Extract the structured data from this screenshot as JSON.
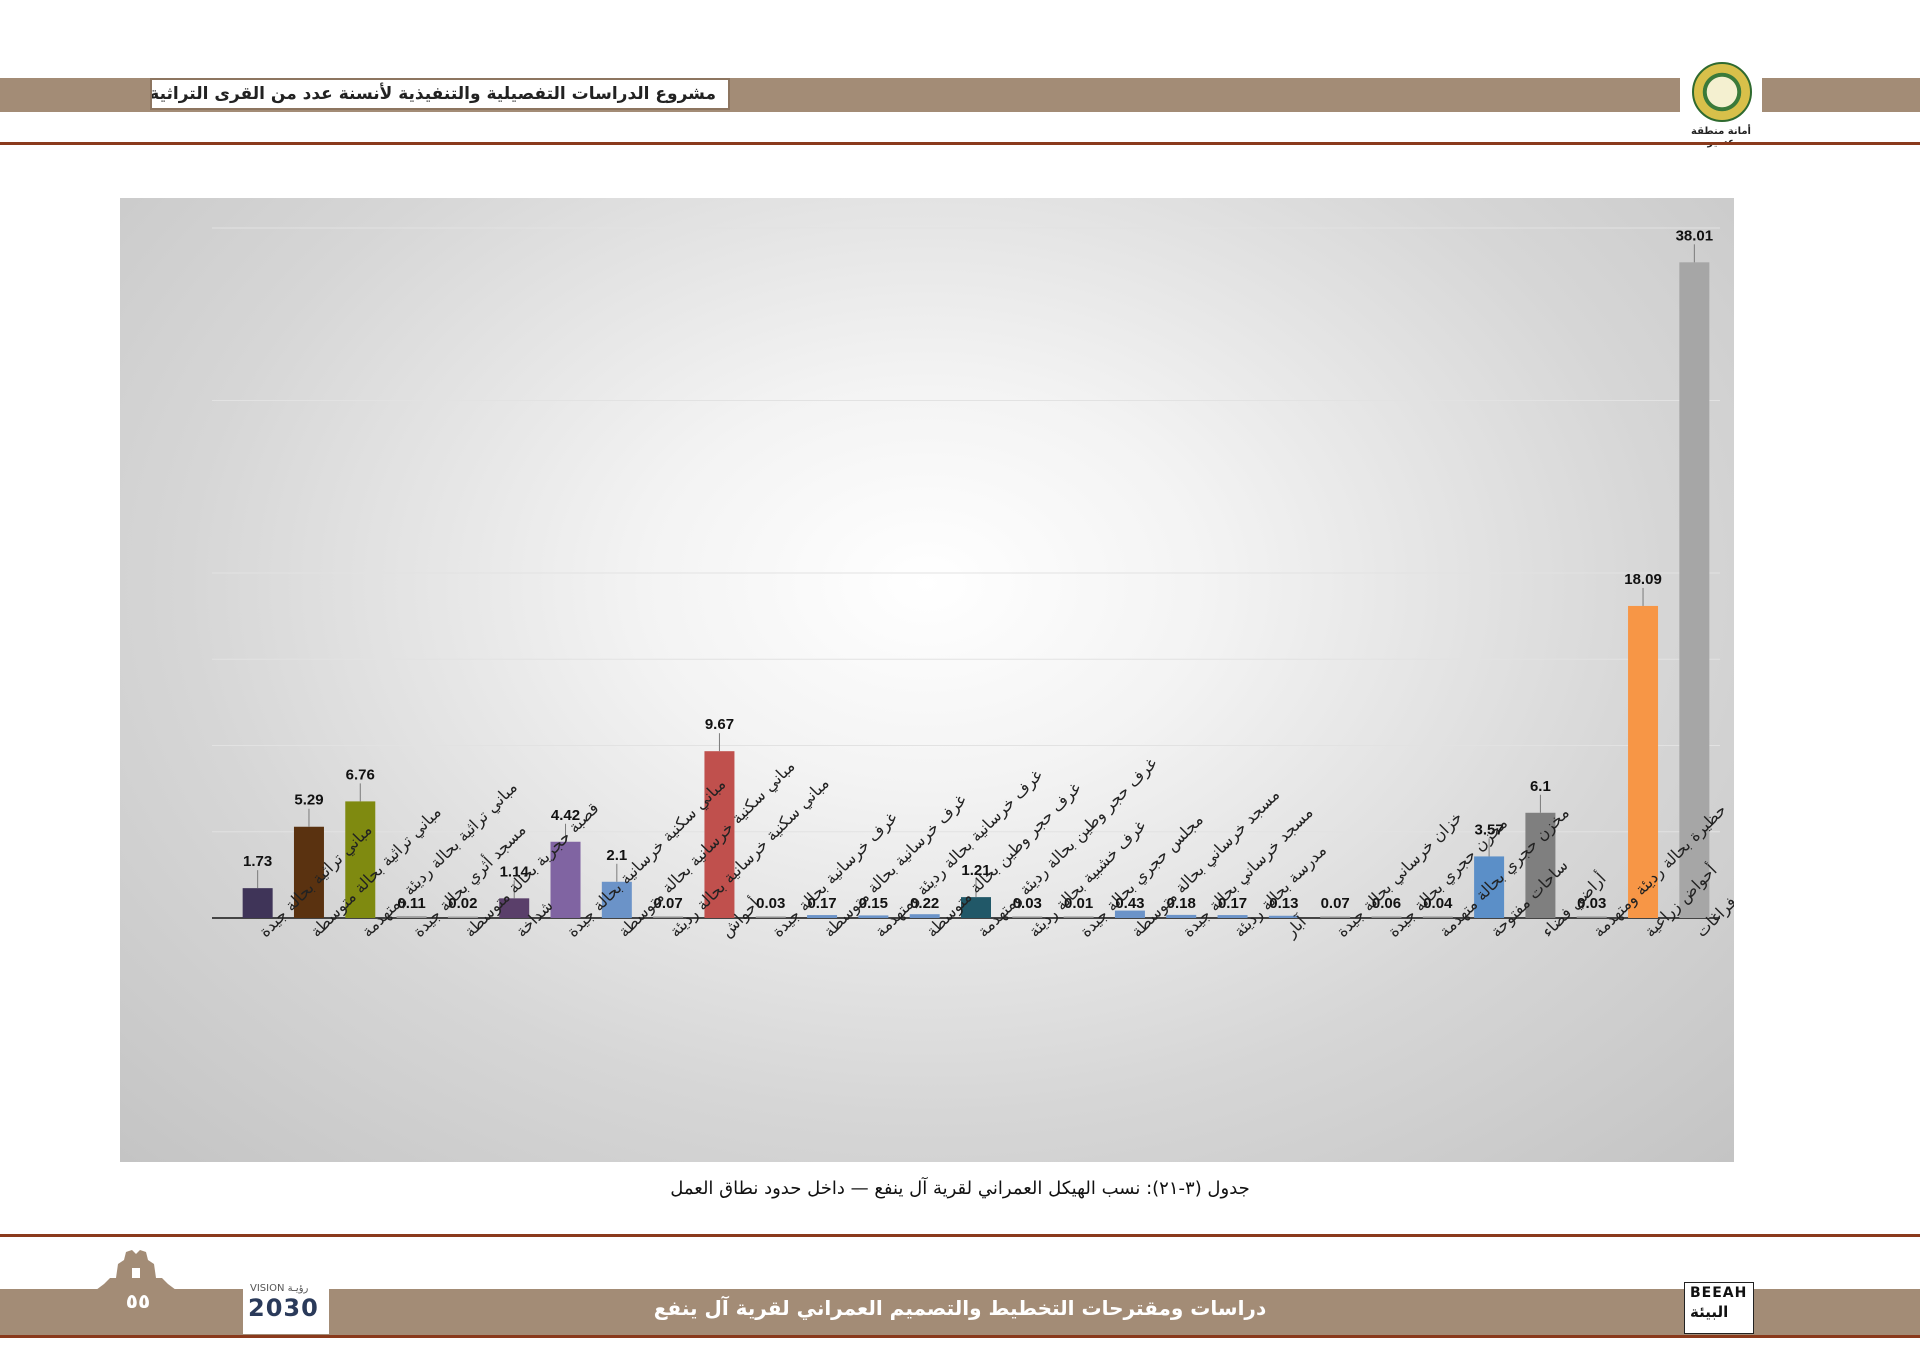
{
  "header": {
    "project_title": "مشروع الدراسات التفصيلية والتنفيذية لأنسنة عدد من القرى التراثية بمنطقة عسير",
    "logo_caption": "أمانة منطقة عسير"
  },
  "chart_data": {
    "type": "bar",
    "ylim": [
      0,
      40
    ],
    "gridlines": [
      5,
      10,
      15,
      20,
      30,
      40
    ],
    "grid": true,
    "legend": "none",
    "title": "",
    "xlabel": "",
    "ylabel": "",
    "categories": [
      "مباني تراثية بحالة جيدة",
      "مباني تراثية بحالة متوسطة",
      "مباني تراثية بحالة رديئة ومتهدمة",
      "مسجد أثري بحالة جيدة",
      "قصبة حجرية بحالة متوسطة",
      "شداخة",
      "مباني سكنية خرسانية بحالة جيدة",
      "مباني سكنية خرسانية بحالة متوسطة",
      "مباني سكنية خرسانية بحالة رديئة",
      "أحواش",
      "غرف خرسانية بحالة جيدة",
      "غرف خرسانية بحالة متوسطة",
      "غرف خرسانية بحالة رديئة ومتهدمة",
      "غرف حجر وطين بحالة متوسطة",
      "غرف حجر وطين بحالة رديئة ومتهدمة",
      "غرف خشبية بحالة رديئة",
      "مجلس حجري بحالة جيدة",
      "مسجد خرساني بحالة متوسطة",
      "مسجد خرساني بحالة جيدة",
      "مدرسة بحالة رديئة",
      "آبار",
      "خزان خرساني بحالة جيدة",
      "مخزن حجري بحالة جيدة",
      "مخزن حجري بحالة متهدمة",
      "ساحات مفتوحة",
      "أراضي فضاء",
      "حظيرة بحالة رديئة ومتهدمة",
      "أحواض زراعية",
      "طرق وفراغات"
    ],
    "values": [
      1.73,
      5.29,
      6.76,
      0.11,
      0.02,
      1.14,
      4.42,
      2.1,
      0.07,
      9.67,
      0.03,
      0.17,
      0.15,
      0.22,
      1.21,
      0.03,
      0.01,
      0.43,
      0.18,
      0.17,
      0.13,
      0.07,
      0.06,
      0.04,
      3.57,
      6.1,
      0.03,
      18.09,
      38.01
    ],
    "value_labels": [
      "1.73",
      "5.29",
      "6.76",
      "0.11",
      "0.02",
      "1.14",
      "4.42",
      "2.1",
      "0.07",
      "9.67",
      "0.03",
      "0.17",
      "0.15",
      "0.22",
      "1.21",
      "0.03",
      "0.01",
      "0.43",
      "0.18",
      "0.17",
      "0.13",
      "0.07",
      "0.06",
      "0.04",
      "3.57",
      "6.1",
      "0.03",
      "18.09",
      "38.01"
    ],
    "colors": [
      "#3f3458",
      "#5a3210",
      "#7f8a10",
      "#9e9e9e",
      "#9e9e9e",
      "#5a3f6a",
      "#8064a2",
      "#6b93c8",
      "#8f8f8f",
      "#c0504d",
      "#8f8f8f",
      "#6b93c8",
      "#6b93c8",
      "#6b93c8",
      "#215868",
      "#8f8f8f",
      "#8f8f8f",
      "#6b93c8",
      "#6b93c8",
      "#6b93c8",
      "#6b93c8",
      "#8f8f8f",
      "#8f8f8f",
      "#8f8f8f",
      "#5b8fc8",
      "#7f7f7f",
      "#8f8f8f",
      "#f79646",
      "#a6a6a6"
    ]
  },
  "caption": "جدول (٣-٢١): نسب الهيكل العمراني لقرية آل ينفع — داخل حدود نطاق العمل",
  "footer": {
    "title": "دراسات ومقترحات التخطيط والتصميم العمراني لقرية آل ينفع",
    "page_number": "٥٥",
    "vision_label": "VISION رؤيـة",
    "vision_year": "2030",
    "beeah_en": "BEEAH",
    "beeah_ar": "البيئة"
  }
}
